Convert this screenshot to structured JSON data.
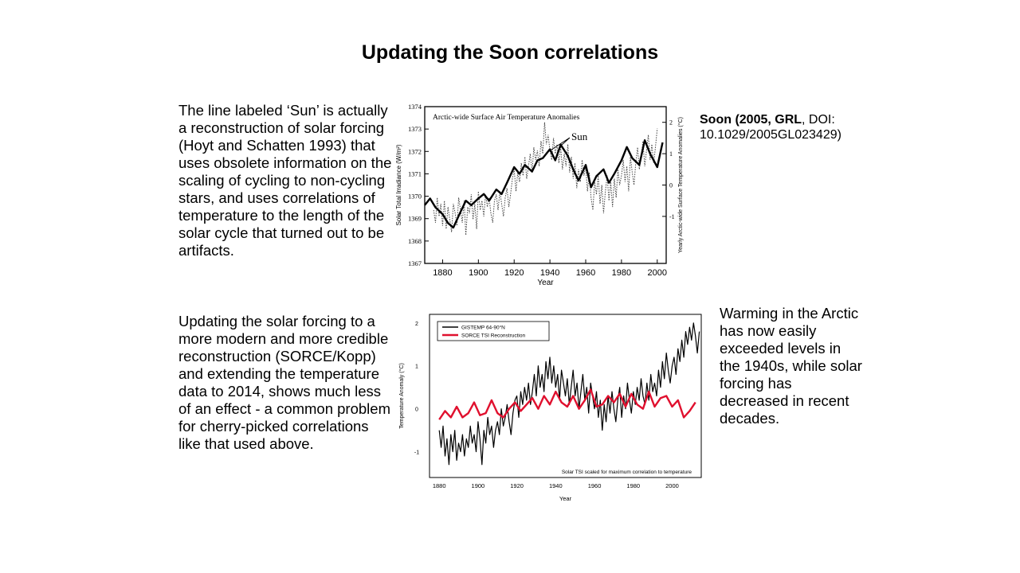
{
  "slide": {
    "title": "Updating the Soon correlations",
    "paragraph_1": "The line labeled ‘Sun’ is actually a reconstruction of solar forcing (Hoyt and Schatten 1993) that uses obsolete information on the scaling of cycling to non-cycling stars, and uses correlations of temperature to the length of the solar cycle that turned out to be artifacts.",
    "paragraph_2": "Updating the solar forcing to a more modern and more credible  reconstruction (SORCE/Kopp) and extending the temperature data to 2014, shows much less of an effect - a common problem for cherry-picked correlations like that used above.",
    "paragraph_3": "Warming in the Arctic has now easily exceeded levels in the 1940s, while solar forcing has decreased in recent decades.",
    "citation_bold": "Soon (2005, GRL",
    "citation_rest": ", DOI: 10.1029/2005GL023429)"
  },
  "chart_data": [
    {
      "type": "line",
      "title": "Arctic-wide Surface Air Temperature Anomalies",
      "xlabel": "Year",
      "ylabel": "Solar Total Irradiance (W/m²)",
      "y2label": "Yearly Arctic-wide Surface Temperature Anomalies (°C)",
      "xlim": [
        1870,
        2005
      ],
      "ylim": [
        1367,
        1374
      ],
      "y2lim": [
        -2.5,
        2.5
      ],
      "x_ticks": [
        1880,
        1900,
        1920,
        1940,
        1960,
        1980,
        2000
      ],
      "y_ticks": [
        1367,
        1368,
        1369,
        1370,
        1371,
        1372,
        1373,
        1374
      ],
      "y2_ticks": [
        -1,
        0,
        1,
        2
      ],
      "x_tick_labels": [
        "1880",
        "1900",
        "1920",
        "1940",
        "1960",
        "1980",
        "2000"
      ],
      "y_tick_labels": [
        "1367",
        "1368",
        "1369",
        "1370",
        "1371",
        "1372",
        "1373",
        "1374"
      ],
      "y2_tick_labels": [
        "-1",
        "0",
        "1",
        "2"
      ],
      "annotation": "Sun",
      "series": [
        {
          "name": "Sun",
          "style": "solid-thick",
          "axis": "left",
          "x": [
            1870,
            1873,
            1876,
            1880,
            1883,
            1886,
            1890,
            1893,
            1896,
            1900,
            1903,
            1906,
            1910,
            1913,
            1916,
            1920,
            1923,
            1926,
            1930,
            1933,
            1936,
            1940,
            1943,
            1946,
            1950,
            1953,
            1956,
            1960,
            1963,
            1966,
            1970,
            1973,
            1976,
            1980,
            1983,
            1986,
            1990,
            1993,
            1996,
            2000,
            2003
          ],
          "values": [
            1369.6,
            1369.9,
            1369.5,
            1369.2,
            1368.8,
            1368.6,
            1369.3,
            1369.8,
            1369.6,
            1369.9,
            1370.1,
            1369.8,
            1370.3,
            1370.1,
            1370.6,
            1371.3,
            1371.0,
            1371.4,
            1371.1,
            1371.6,
            1371.7,
            1372.1,
            1371.6,
            1372.3,
            1371.8,
            1371.2,
            1370.7,
            1371.4,
            1370.4,
            1370.9,
            1371.2,
            1370.6,
            1371.0,
            1371.6,
            1372.2,
            1371.7,
            1371.4,
            1372.5,
            1371.9,
            1371.3,
            1372.4
          ]
        },
        {
          "name": "Arctic-wide Surface Air Temperature Anomalies",
          "style": "dotted",
          "axis": "right",
          "x": [
            1875,
            1876,
            1877,
            1878,
            1879,
            1880,
            1881,
            1882,
            1883,
            1884,
            1885,
            1886,
            1887,
            1888,
            1889,
            1890,
            1891,
            1892,
            1893,
            1894,
            1895,
            1896,
            1897,
            1898,
            1899,
            1900,
            1901,
            1902,
            1903,
            1904,
            1905,
            1906,
            1907,
            1908,
            1909,
            1910,
            1911,
            1912,
            1913,
            1914,
            1915,
            1916,
            1917,
            1918,
            1919,
            1920,
            1921,
            1922,
            1923,
            1924,
            1925,
            1926,
            1927,
            1928,
            1929,
            1930,
            1931,
            1932,
            1933,
            1934,
            1935,
            1936,
            1937,
            1938,
            1939,
            1940,
            1941,
            1942,
            1943,
            1944,
            1945,
            1946,
            1947,
            1948,
            1949,
            1950,
            1951,
            1952,
            1953,
            1954,
            1955,
            1956,
            1957,
            1958,
            1959,
            1960,
            1961,
            1962,
            1963,
            1964,
            1965,
            1966,
            1967,
            1968,
            1969,
            1970,
            1971,
            1972,
            1973,
            1974,
            1975,
            1976,
            1977,
            1978,
            1979,
            1980,
            1981,
            1982,
            1983,
            1984,
            1985,
            1986,
            1987,
            1988,
            1989,
            1990,
            1991,
            1992,
            1993,
            1994,
            1995,
            1996,
            1997,
            1998,
            1999,
            2000
          ],
          "values": [
            -0.8,
            -1.2,
            -0.4,
            -1.0,
            -0.6,
            -1.3,
            -0.5,
            -1.4,
            -0.7,
            -1.1,
            -1.5,
            -0.6,
            -0.9,
            -1.3,
            -0.4,
            -0.8,
            -1.2,
            -0.5,
            -1.6,
            -0.7,
            -0.9,
            -0.3,
            -1.1,
            -0.6,
            -1.4,
            -0.2,
            -0.8,
            -0.5,
            -1.0,
            -0.3,
            -0.7,
            -0.4,
            -0.9,
            -1.2,
            -0.5,
            -0.3,
            -0.8,
            -0.2,
            -0.6,
            -1.0,
            -0.4,
            -0.1,
            -0.7,
            -0.3,
            0.2,
            0.5,
            -0.2,
            0.4,
            0.1,
            0.7,
            0.3,
            0.9,
            0.2,
            0.6,
            1.0,
            0.4,
            1.2,
            0.8,
            1.1,
            0.6,
            1.4,
            1.0,
            2.0,
            1.3,
            1.6,
            1.1,
            0.8,
            1.5,
            1.0,
            1.3,
            0.7,
            1.2,
            0.5,
            1.0,
            0.6,
            1.3,
            0.4,
            0.9,
            0.2,
            0.7,
            -0.1,
            0.5,
            0.1,
            0.8,
            0.3,
            0.6,
            -0.2,
            0.4,
            -0.4,
            -0.8,
            0.1,
            -0.3,
            0.3,
            -0.6,
            0.0,
            -0.9,
            -0.2,
            0.3,
            -0.5,
            0.1,
            -0.7,
            0.2,
            -0.4,
            0.5,
            0.0,
            0.3,
            0.8,
            0.1,
            0.6,
            -0.2,
            0.9,
            0.4,
            0.0,
            0.7,
            1.2,
            0.5,
            0.9,
            1.4,
            0.6,
            1.1,
            1.6,
            0.8,
            1.3,
            0.7,
            1.2,
            1.8
          ]
        }
      ]
    },
    {
      "type": "line",
      "xlabel": "Year",
      "ylabel": "Temperature Anomaly (°C)",
      "xlim": [
        1875,
        2015
      ],
      "ylim": [
        -1.6,
        2.2
      ],
      "x_ticks": [
        1880,
        1900,
        1920,
        1940,
        1960,
        1980,
        2000
      ],
      "y_ticks": [
        -1,
        0,
        1,
        2
      ],
      "x_tick_labels": [
        "1880",
        "1900",
        "1920",
        "1940",
        "1960",
        "1980",
        "2000"
      ],
      "y_tick_labels": [
        "-1",
        "0",
        "1",
        "2"
      ],
      "legend": "top-left",
      "annotation": "Solar TSI scaled for maximum correlation to temperature",
      "series": [
        {
          "name": "GISTEMP 64-90°N",
          "color": "#000000",
          "x": [
            1880,
            1881,
            1882,
            1883,
            1884,
            1885,
            1886,
            1887,
            1888,
            1889,
            1890,
            1891,
            1892,
            1893,
            1894,
            1895,
            1896,
            1897,
            1898,
            1899,
            1900,
            1901,
            1902,
            1903,
            1904,
            1905,
            1906,
            1907,
            1908,
            1909,
            1910,
            1911,
            1912,
            1913,
            1914,
            1915,
            1916,
            1917,
            1918,
            1919,
            1920,
            1921,
            1922,
            1923,
            1924,
            1925,
            1926,
            1927,
            1928,
            1929,
            1930,
            1931,
            1932,
            1933,
            1934,
            1935,
            1936,
            1937,
            1938,
            1939,
            1940,
            1941,
            1942,
            1943,
            1944,
            1945,
            1946,
            1947,
            1948,
            1949,
            1950,
            1951,
            1952,
            1953,
            1954,
            1955,
            1956,
            1957,
            1958,
            1959,
            1960,
            1961,
            1962,
            1963,
            1964,
            1965,
            1966,
            1967,
            1968,
            1969,
            1970,
            1971,
            1972,
            1973,
            1974,
            1975,
            1976,
            1977,
            1978,
            1979,
            1980,
            1981,
            1982,
            1983,
            1984,
            1985,
            1986,
            1987,
            1988,
            1989,
            1990,
            1991,
            1992,
            1993,
            1994,
            1995,
            1996,
            1997,
            1998,
            1999,
            2000,
            2001,
            2002,
            2003,
            2004,
            2005,
            2006,
            2007,
            2008,
            2009,
            2010,
            2011,
            2012,
            2013,
            2014
          ],
          "values": [
            -0.5,
            -0.9,
            -0.4,
            -1.1,
            -0.7,
            -1.3,
            -0.6,
            -1.0,
            -0.5,
            -1.2,
            -0.8,
            -1.0,
            -0.6,
            -1.1,
            -0.7,
            -0.9,
            -0.4,
            -0.8,
            -0.6,
            -1.0,
            -0.3,
            -0.7,
            -1.3,
            -0.5,
            -0.8,
            -0.2,
            -0.6,
            -0.4,
            -0.9,
            -0.5,
            -0.3,
            -0.6,
            0.0,
            -0.4,
            -0.2,
            0.1,
            -0.3,
            -0.6,
            -0.1,
            0.2,
            0.3,
            -0.2,
            0.4,
            0.1,
            0.5,
            0.2,
            0.6,
            0.1,
            0.4,
            0.8,
            0.3,
            1.0,
            0.5,
            0.8,
            0.4,
            1.1,
            0.7,
            1.2,
            0.6,
            1.0,
            0.5,
            0.8,
            0.2,
            0.9,
            0.6,
            0.3,
            0.7,
            0.1,
            0.5,
            0.9,
            0.3,
            0.6,
            0.0,
            0.4,
            0.8,
            0.2,
            0.5,
            -0.1,
            0.6,
            0.3,
            0.0,
            0.4,
            -0.2,
            0.2,
            -0.5,
            0.1,
            -0.3,
            0.3,
            -0.1,
            0.4,
            0.0,
            -0.3,
            0.2,
            0.5,
            -0.2,
            0.3,
            0.0,
            0.6,
            0.2,
            -0.1,
            0.4,
            0.1,
            0.5,
            0.2,
            0.7,
            0.3,
            0.1,
            0.6,
            0.2,
            0.8,
            0.4,
            0.6,
            0.3,
            0.9,
            0.5,
            1.1,
            0.7,
            1.3,
            0.9,
            0.6,
            1.0,
            1.2,
            0.8,
            1.4,
            1.1,
            1.6,
            1.2,
            1.8,
            1.5,
            1.9,
            1.6,
            2.0,
            1.7,
            1.3,
            1.8
          ]
        },
        {
          "name": "SORCE TSI Reconstruction",
          "color": "#e0102e",
          "x": [
            1880,
            1883,
            1886,
            1889,
            1892,
            1895,
            1898,
            1901,
            1904,
            1907,
            1910,
            1913,
            1916,
            1919,
            1922,
            1925,
            1928,
            1931,
            1934,
            1937,
            1940,
            1943,
            1946,
            1949,
            1952,
            1955,
            1958,
            1961,
            1964,
            1967,
            1970,
            1973,
            1976,
            1979,
            1982,
            1985,
            1988,
            1991,
            1994,
            1997,
            2000,
            2003,
            2006,
            2009,
            2012
          ],
          "values": [
            -0.25,
            -0.05,
            -0.2,
            0.05,
            -0.2,
            -0.1,
            0.15,
            -0.15,
            -0.1,
            0.2,
            -0.1,
            -0.2,
            0.0,
            0.15,
            -0.05,
            0.1,
            0.25,
            0.0,
            0.3,
            0.1,
            0.4,
            0.15,
            0.05,
            0.3,
            0.0,
            0.2,
            0.45,
            0.05,
            0.1,
            0.3,
            0.15,
            0.35,
            0.05,
            0.35,
            0.1,
            0.0,
            0.4,
            0.05,
            0.25,
            0.3,
            0.05,
            0.2,
            -0.2,
            -0.05,
            0.15
          ]
        }
      ]
    }
  ]
}
